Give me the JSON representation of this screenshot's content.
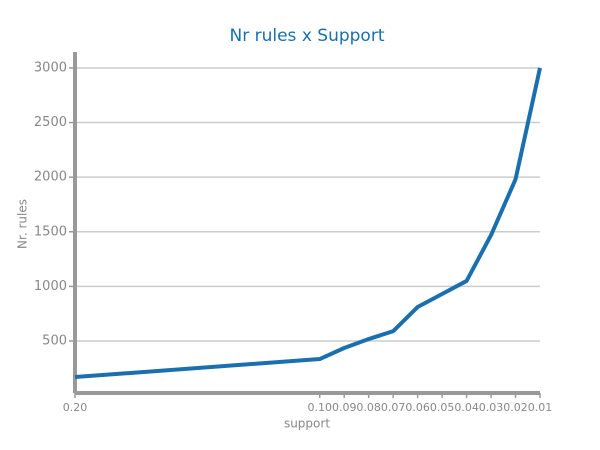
{
  "chart_data": {
    "type": "line",
    "title": "Nr rules x Support",
    "x_label": "support",
    "y_label": "Nr. rules",
    "x": [
      0.2,
      0.1,
      0.09,
      0.08,
      0.07,
      0.06,
      0.05,
      0.04,
      0.03,
      0.02,
      0.01
    ],
    "values": [
      170,
      335,
      436,
      518,
      590,
      811,
      930,
      1050,
      1470,
      1980,
      3000
    ],
    "color": "#1a6faf",
    "xlim": [
      0.2,
      0.01
    ],
    "xticks": [
      {
        "value": 0.2,
        "label": "0.20"
      },
      {
        "value": 0.1,
        "label": "0.10"
      },
      {
        "value": 0.09,
        "label": "0.09"
      },
      {
        "value": 0.08,
        "label": "0.08"
      },
      {
        "value": 0.07,
        "label": "0.07"
      },
      {
        "value": 0.06,
        "label": "0.06"
      },
      {
        "value": 0.05,
        "label": "0.05"
      },
      {
        "value": 0.04,
        "label": "0.04"
      },
      {
        "value": 0.03,
        "label": "0.03"
      },
      {
        "value": 0.02,
        "label": "0.02"
      },
      {
        "value": 0.01,
        "label": "0.01"
      }
    ],
    "ylim": [
      24,
      3146
    ],
    "yticks": [
      500,
      1000,
      1500,
      2000,
      2500,
      3000
    ],
    "grid": true
  }
}
